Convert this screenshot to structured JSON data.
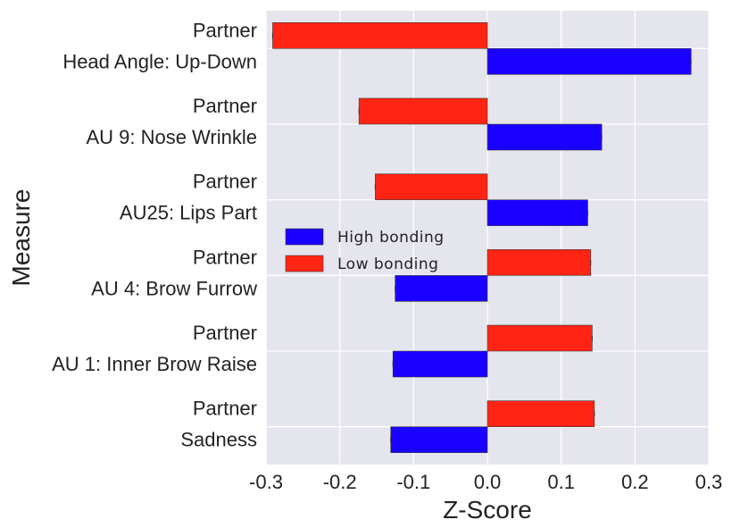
{
  "chart_data": {
    "type": "bar",
    "orientation": "horizontal",
    "categories": [
      [
        "Partner",
        "Head Angle: Up-Down"
      ],
      [
        "Partner",
        "AU 9: Nose Wrinkle"
      ],
      [
        "Partner",
        "AU25: Lips Part"
      ],
      [
        "Partner",
        "AU 4: Brow Furrow"
      ],
      [
        "Partner",
        "AU 1: Inner Brow Raise"
      ],
      [
        "Partner",
        "Sadness"
      ]
    ],
    "series": [
      {
        "name": "High bonding",
        "color": "#1a00ff",
        "values": [
          0.276,
          0.155,
          0.136,
          -0.125,
          -0.128,
          -0.131
        ]
      },
      {
        "name": "Low bonding",
        "color": "#ff2414",
        "values": [
          -0.291,
          -0.174,
          -0.152,
          0.14,
          0.142,
          0.145
        ]
      }
    ],
    "xlabel": "Z-Score",
    "ylabel": "Measure",
    "xlim": [
      -0.3,
      0.3
    ],
    "xticks": [
      "-0.3",
      "-0.2",
      "-0.1",
      "0.0",
      "0.1",
      "0.2",
      "0.3"
    ],
    "grid": true,
    "legend_position": "center-left"
  }
}
